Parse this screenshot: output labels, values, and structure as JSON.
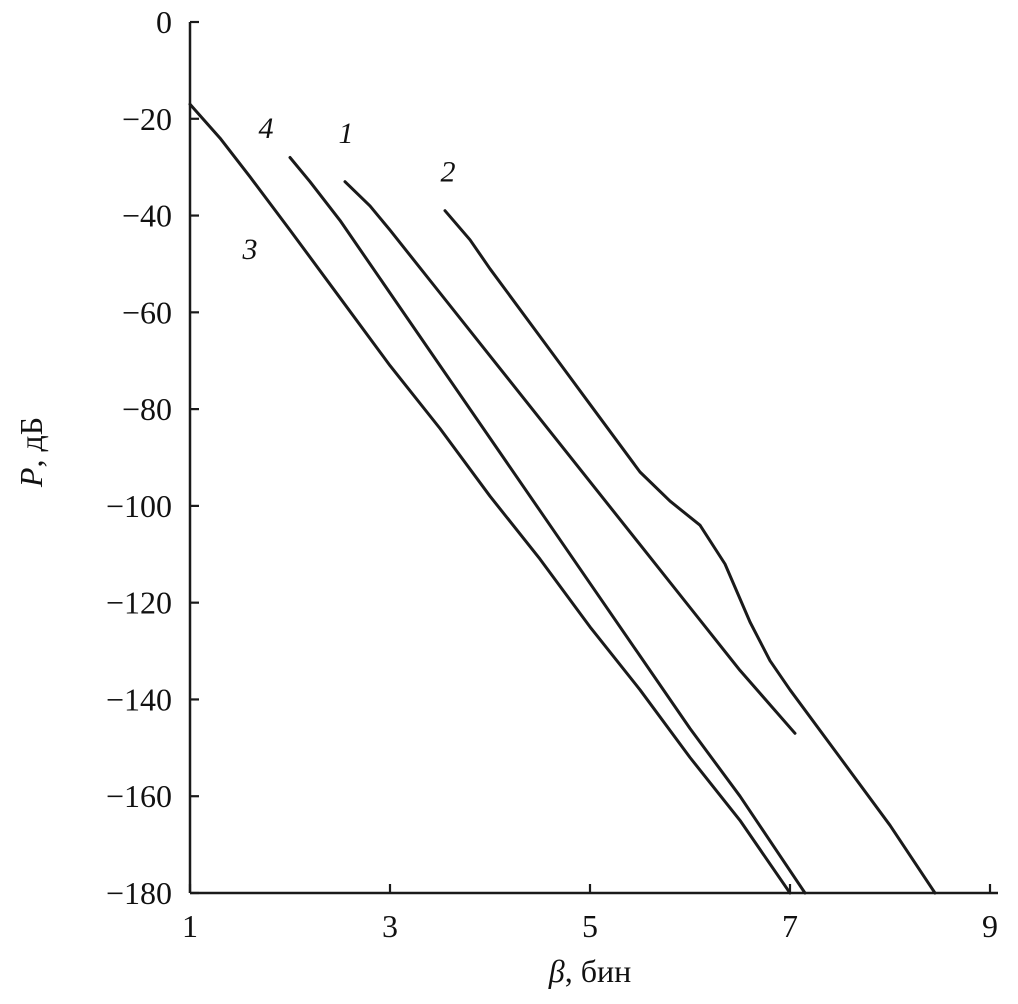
{
  "page": {
    "background": "#ffffff",
    "foreground": "#111111"
  },
  "chart_data": {
    "type": "line",
    "title": "",
    "xlabel_symbol": "β",
    "xlabel_rest": ", бин",
    "ylabel_symbol": "P",
    "ylabel_rest": ", дБ",
    "xlim": [
      1,
      9
    ],
    "ylim": [
      -180,
      0
    ],
    "grid": false,
    "legend_position": "none",
    "line_color": "#1a1a1a",
    "x_ticks": [
      {
        "v": 1,
        "label": "1"
      },
      {
        "v": 3,
        "label": "3"
      },
      {
        "v": 5,
        "label": "5"
      },
      {
        "v": 7,
        "label": "7"
      },
      {
        "v": 9,
        "label": "9"
      }
    ],
    "y_ticks": [
      {
        "v": 0,
        "label": "0"
      },
      {
        "v": -20,
        "label": "−20"
      },
      {
        "v": -40,
        "label": "−40"
      },
      {
        "v": -60,
        "label": "−60"
      },
      {
        "v": -80,
        "label": "−80"
      },
      {
        "v": -100,
        "label": "−100"
      },
      {
        "v": -120,
        "label": "−120"
      },
      {
        "v": -140,
        "label": "−140"
      },
      {
        "v": -160,
        "label": "−160"
      },
      {
        "v": -180,
        "label": "−180"
      }
    ],
    "series": [
      {
        "name": "1",
        "points": [
          [
            2.55,
            -33
          ],
          [
            2.8,
            -38
          ],
          [
            3.0,
            -43
          ],
          [
            3.5,
            -56
          ],
          [
            4.0,
            -69
          ],
          [
            4.5,
            -82
          ],
          [
            5.0,
            -95
          ],
          [
            5.5,
            -108
          ],
          [
            6.0,
            -121
          ],
          [
            6.5,
            -134
          ],
          [
            7.05,
            -147
          ]
        ]
      },
      {
        "name": "2",
        "points": [
          [
            3.55,
            -39
          ],
          [
            3.8,
            -45
          ],
          [
            4.0,
            -51
          ],
          [
            4.5,
            -65
          ],
          [
            5.0,
            -79
          ],
          [
            5.5,
            -93
          ],
          [
            5.8,
            -99
          ],
          [
            6.1,
            -104
          ],
          [
            6.35,
            -112
          ],
          [
            6.6,
            -124
          ],
          [
            6.8,
            -132
          ],
          [
            7.0,
            -138
          ],
          [
            7.5,
            -152
          ],
          [
            8.0,
            -166
          ],
          [
            8.45,
            -180
          ]
        ]
      },
      {
        "name": "3",
        "points": [
          [
            1.0,
            -17
          ],
          [
            1.3,
            -24
          ],
          [
            1.6,
            -32
          ],
          [
            2.0,
            -43
          ],
          [
            2.5,
            -57
          ],
          [
            3.0,
            -71
          ],
          [
            3.5,
            -84
          ],
          [
            4.0,
            -98
          ],
          [
            4.5,
            -111
          ],
          [
            5.0,
            -125
          ],
          [
            5.5,
            -138
          ],
          [
            6.0,
            -152
          ],
          [
            6.5,
            -165
          ],
          [
            7.0,
            -180
          ]
        ]
      },
      {
        "name": "4",
        "points": [
          [
            2.0,
            -28
          ],
          [
            2.2,
            -33
          ],
          [
            2.5,
            -41
          ],
          [
            3.0,
            -56
          ],
          [
            3.5,
            -71
          ],
          [
            4.0,
            -86
          ],
          [
            4.5,
            -101
          ],
          [
            5.0,
            -116
          ],
          [
            5.5,
            -131
          ],
          [
            6.0,
            -146
          ],
          [
            6.5,
            -160
          ],
          [
            7.15,
            -180
          ]
        ]
      }
    ],
    "annotations": [
      {
        "text": "4",
        "x": 1.76,
        "y": -24
      },
      {
        "text": "1",
        "x": 2.56,
        "y": -25
      },
      {
        "text": "2",
        "x": 3.58,
        "y": -33
      },
      {
        "text": "3",
        "x": 1.6,
        "y": -49
      }
    ]
  }
}
